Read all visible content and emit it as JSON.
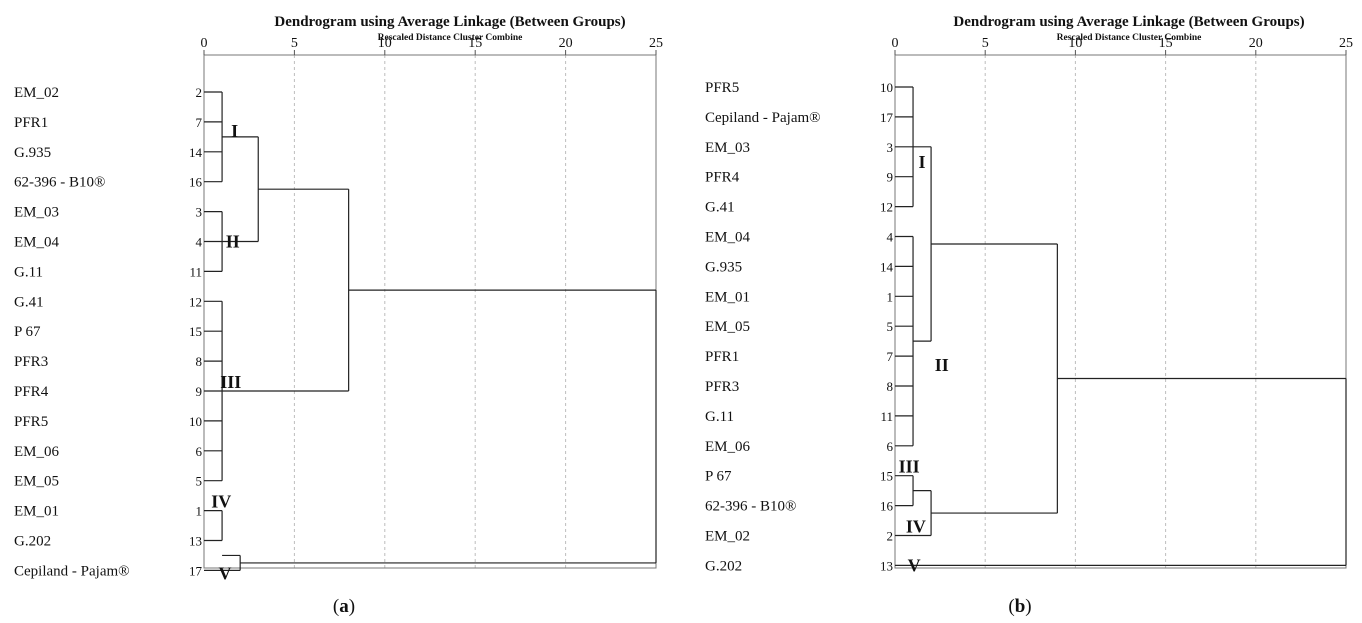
{
  "chart_data": [
    {
      "type": "dendrogram",
      "panel_label": "a",
      "title": "Dendrogram using Average Linkage (Between Groups)",
      "subtitle": "Rescaled Distance Cluster Combine",
      "xlim": [
        0,
        25
      ],
      "x_ticks": [
        "0",
        "5",
        "10",
        "15",
        "20",
        "25"
      ],
      "grid": true,
      "leaves": [
        {
          "label": "EM_02",
          "index": "2"
        },
        {
          "label": "PFR1",
          "index": "7"
        },
        {
          "label": "G.935",
          "index": "14"
        },
        {
          "label": "62-396 - B10®",
          "index": "16"
        },
        {
          "label": "EM_03",
          "index": "3"
        },
        {
          "label": "EM_04",
          "index": "4"
        },
        {
          "label": "G.11",
          "index": "11"
        },
        {
          "label": "G.41",
          "index": "12"
        },
        {
          "label": "P 67",
          "index": "15"
        },
        {
          "label": "PFR3",
          "index": "8"
        },
        {
          "label": "PFR4",
          "index": "9"
        },
        {
          "label": "PFR5",
          "index": "10"
        },
        {
          "label": "EM_06",
          "index": "6"
        },
        {
          "label": "EM_05",
          "index": "5"
        },
        {
          "label": "EM_01",
          "index": "1"
        },
        {
          "label": "G.202",
          "index": "13"
        },
        {
          "label": "Cepiland - Pajam®",
          "index": "17"
        }
      ],
      "merges": [
        {
          "rows": [
            0,
            3
          ],
          "height": 1
        },
        {
          "rows": [
            4,
            6
          ],
          "height": 1
        },
        {
          "rows": [
            7,
            13
          ],
          "height": 1
        },
        {
          "rows": [
            14,
            15
          ],
          "height": 1
        },
        {
          "rows": [
            1.5,
            5
          ],
          "height": 3
        },
        {
          "rows": [
            15.5,
            16
          ],
          "height": 2
        },
        {
          "rows": [
            3.25,
            10
          ],
          "height": 8
        },
        {
          "rows": [
            6.625,
            15.75
          ],
          "height": 25
        }
      ],
      "group_labels": [
        {
          "text": "I",
          "row": 1.3,
          "x": 1.5
        },
        {
          "text": "II",
          "row": 5.0,
          "x": 1.2
        },
        {
          "text": "III",
          "row": 9.7,
          "x": 0.9
        },
        {
          "text": "IV",
          "row": 13.7,
          "x": 0.4
        },
        {
          "text": "V",
          "row": 16.1,
          "x": 0.8
        }
      ]
    },
    {
      "type": "dendrogram",
      "panel_label": "b",
      "title": "Dendrogram using Average Linkage (Between Groups)",
      "subtitle": "Rescaled Distance Cluster Combine",
      "xlim": [
        0,
        25
      ],
      "x_ticks": [
        "0",
        "5",
        "10",
        "15",
        "20",
        "25"
      ],
      "grid": true,
      "leaves": [
        {
          "label": "PFR5",
          "index": "10"
        },
        {
          "label": "Cepiland - Pajam®",
          "index": "17"
        },
        {
          "label": "EM_03",
          "index": "3"
        },
        {
          "label": "PFR4",
          "index": "9"
        },
        {
          "label": "G.41",
          "index": "12"
        },
        {
          "label": "EM_04",
          "index": "4"
        },
        {
          "label": "G.935",
          "index": "14"
        },
        {
          "label": "EM_01",
          "index": "1"
        },
        {
          "label": "EM_05",
          "index": "5"
        },
        {
          "label": "PFR1",
          "index": "7"
        },
        {
          "label": "PFR3",
          "index": "8"
        },
        {
          "label": "G.11",
          "index": "11"
        },
        {
          "label": "EM_06",
          "index": "6"
        },
        {
          "label": "P 67",
          "index": "15"
        },
        {
          "label": "62-396 - B10®",
          "index": "16"
        },
        {
          "label": "EM_02",
          "index": "2"
        },
        {
          "label": "G.202",
          "index": "13"
        }
      ],
      "merges": [
        {
          "rows": [
            0,
            4
          ],
          "height": 1
        },
        {
          "rows": [
            5,
            12
          ],
          "height": 1
        },
        {
          "rows": [
            13,
            14
          ],
          "height": 1
        },
        {
          "rows": [
            2,
            8.5
          ],
          "height": 2
        },
        {
          "rows": [
            13.5,
            15
          ],
          "height": 2
        },
        {
          "rows": [
            5.25,
            14.25
          ],
          "height": 9
        },
        {
          "rows": [
            9.75,
            16
          ],
          "height": 25
        }
      ],
      "group_labels": [
        {
          "text": "I",
          "row": 2.5,
          "x": 1.3
        },
        {
          "text": "II",
          "row": 9.3,
          "x": 2.2
        },
        {
          "text": "III",
          "row": 12.7,
          "x": 0.2
        },
        {
          "text": "IV",
          "row": 14.7,
          "x": 0.6
        },
        {
          "text": "V",
          "row": 16.0,
          "x": 0.7
        }
      ]
    }
  ],
  "captions": [
    {
      "open": "(",
      "letter": "a",
      "close": ")"
    },
    {
      "open": "(",
      "letter": "b",
      "close": ")"
    }
  ]
}
